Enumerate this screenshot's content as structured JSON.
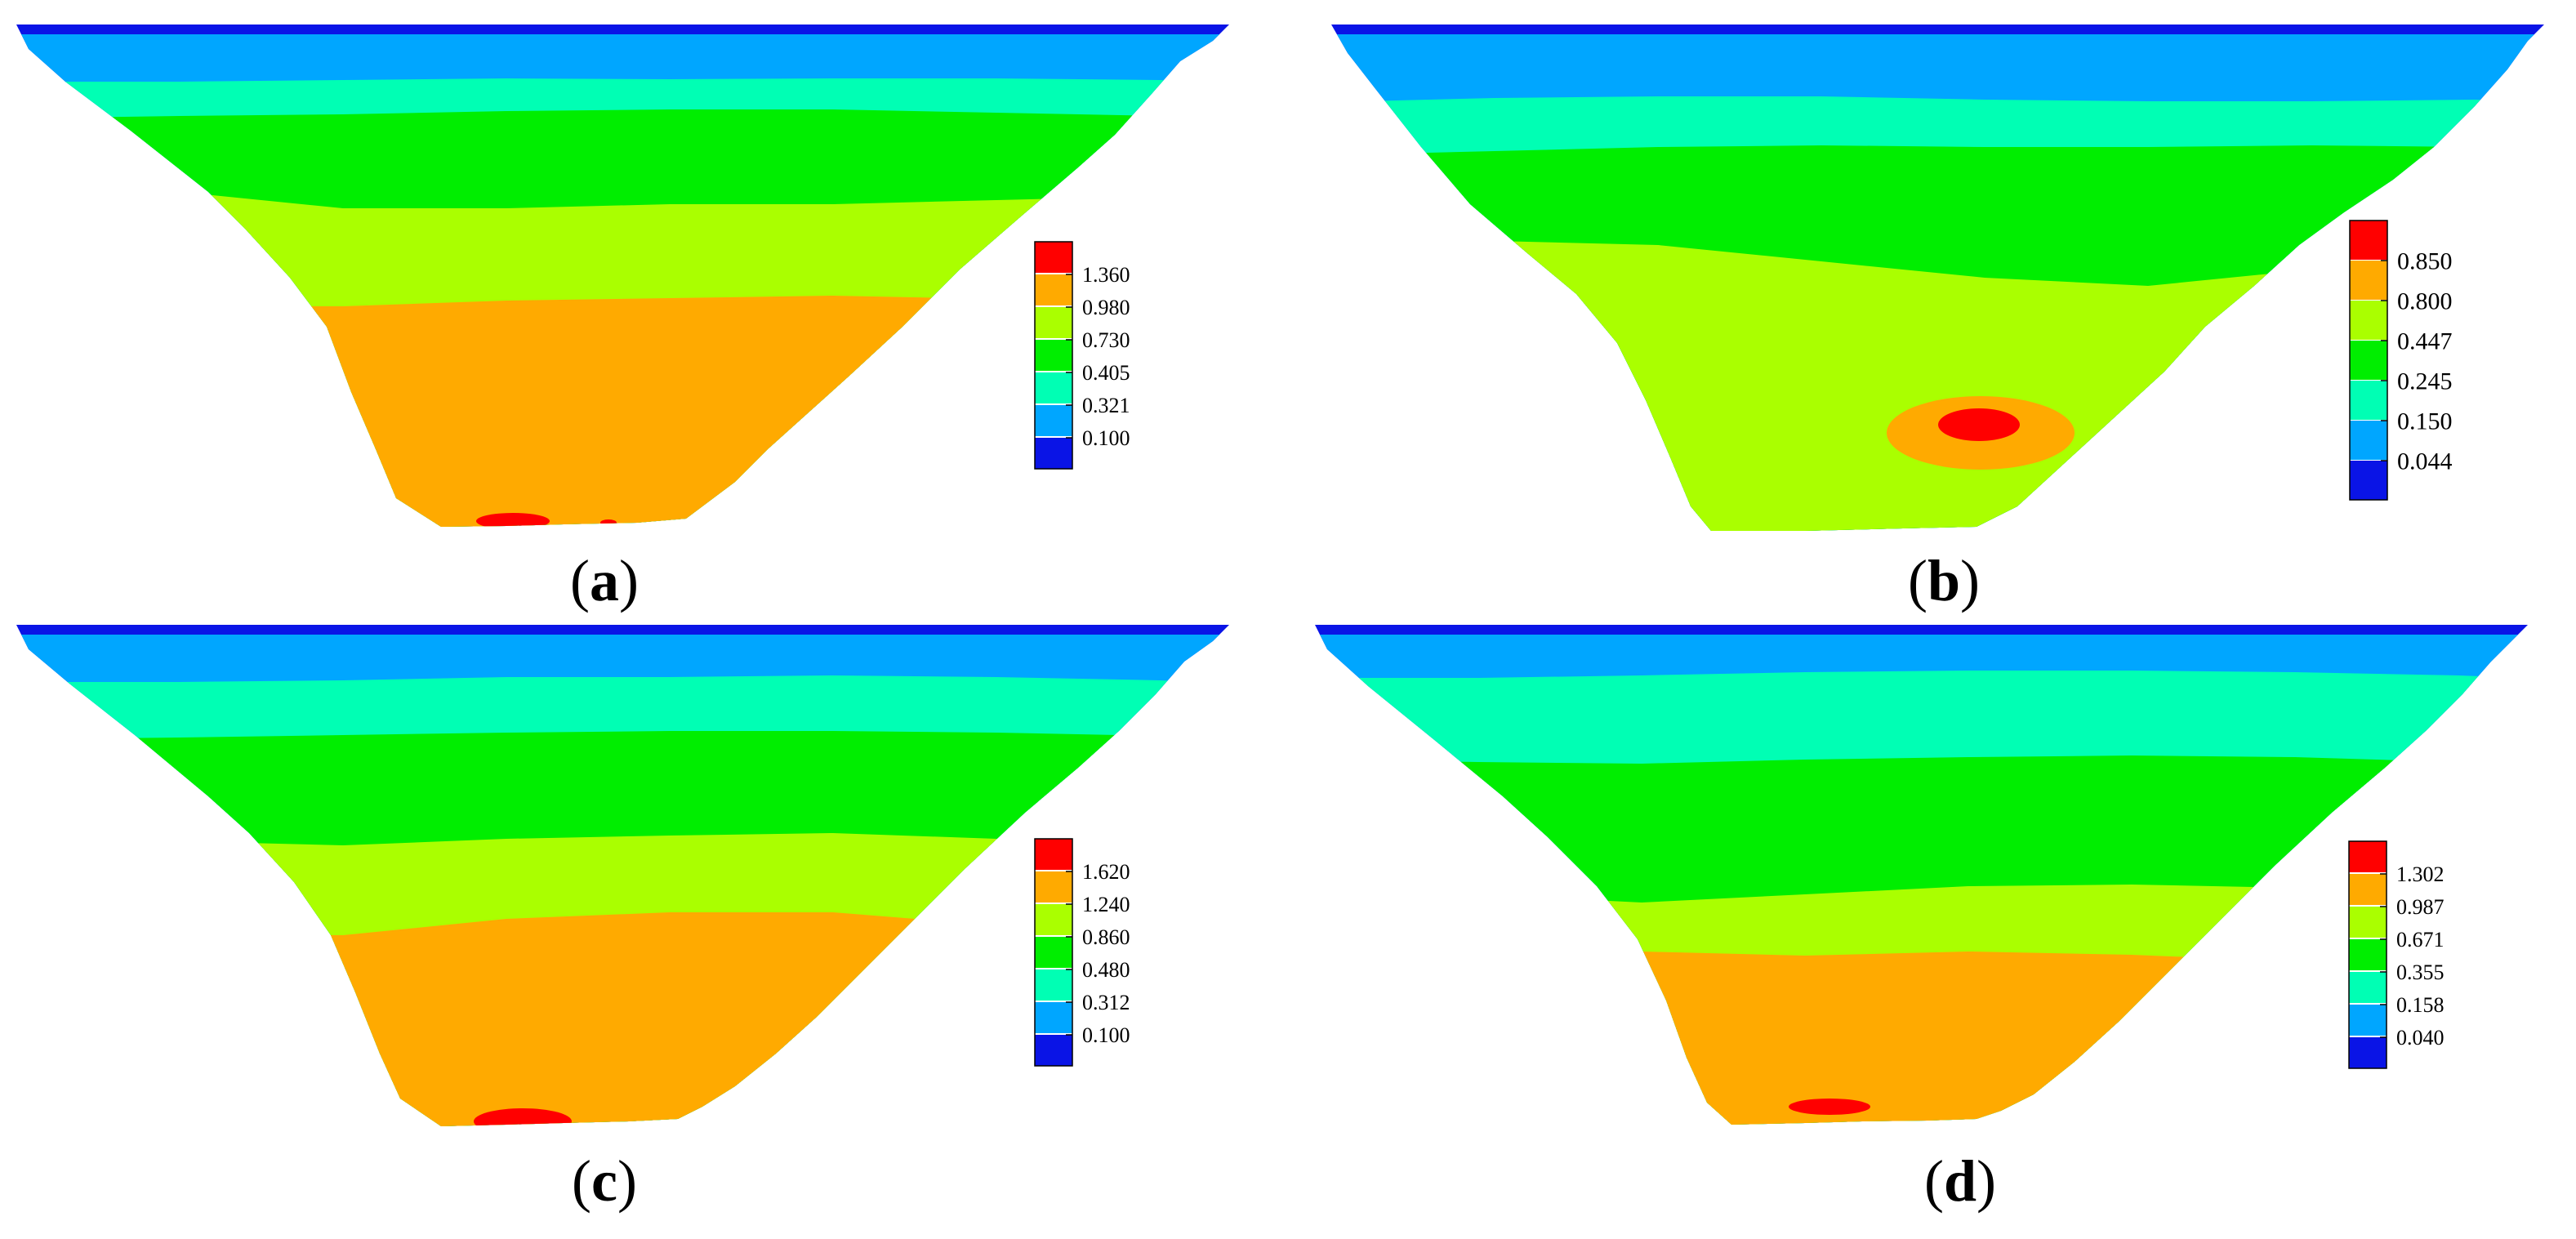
{
  "colors": {
    "c0": "#0a14e6",
    "c1": "#00a6ff",
    "c2": "#00ffb4",
    "c3": "#00ee00",
    "c4": "#aaff00",
    "c5": "#ffaa00",
    "c6": "#ff0000"
  },
  "chart_data": [
    {
      "type": "heatmap",
      "caption_letter": "a",
      "legend_levels": [
        "1.360",
        "0.980",
        "0.730",
        "0.405",
        "0.321",
        "0.100"
      ]
    },
    {
      "type": "heatmap",
      "caption_letter": "b",
      "legend_levels": [
        "0.850",
        "0.800",
        "0.447",
        "0.245",
        "0.150",
        "0.044"
      ]
    },
    {
      "type": "heatmap",
      "caption_letter": "c",
      "legend_levels": [
        "1.620",
        "1.240",
        "0.860",
        "0.480",
        "0.312",
        "0.100"
      ]
    },
    {
      "type": "heatmap",
      "caption_letter": "d",
      "legend_levels": [
        "1.302",
        "0.987",
        "0.671",
        "0.355",
        "0.158",
        "0.040"
      ]
    }
  ]
}
